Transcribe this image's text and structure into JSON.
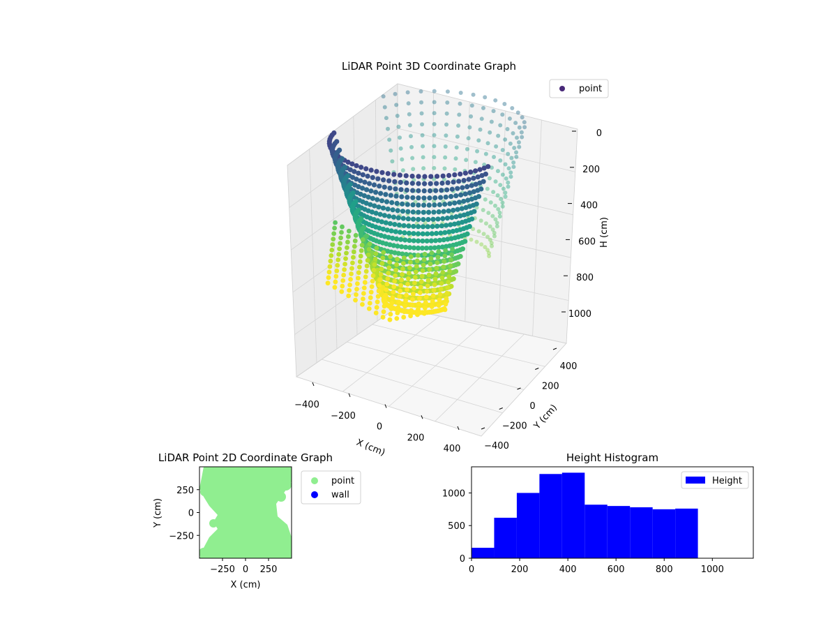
{
  "chart_data": [
    {
      "type": "scatter",
      "projection": "3d",
      "title": "LiDAR Point 3D Coordinate Graph",
      "xlabel": "X (cm)",
      "ylabel": "Y (cm)",
      "zlabel": "H (cm)",
      "xticks": [
        -400,
        -200,
        0,
        200,
        400
      ],
      "yticks": [
        -400,
        -200,
        0,
        200,
        400
      ],
      "zticks": [
        0,
        200,
        400,
        600,
        800,
        1000
      ],
      "xlim": [
        -500,
        500
      ],
      "ylim": [
        -500,
        500
      ],
      "zlim": [
        0,
        1150
      ],
      "zaxis_inverted": true,
      "colormap": "viridis",
      "grid": true,
      "legend": {
        "placement": "top-right",
        "entries": [
          {
            "name": "point",
            "color": "#482878"
          }
        ]
      },
      "series": [
        {
          "name": "point",
          "description_of_shape": "bowl-shaped surface of concentric rings; deepest near X≈0, Y≈-300 at H≈1000"
        }
      ]
    },
    {
      "type": "scatter",
      "title": "LiDAR Point 2D Coordinate Graph",
      "xlabel": "X (cm)",
      "ylabel": "Y (cm)",
      "xticks": [
        -250,
        0,
        250
      ],
      "yticks": [
        -250,
        0,
        250
      ],
      "xlim": [
        -500,
        500
      ],
      "ylim": [
        -500,
        500
      ],
      "legend": {
        "placement": "outside-right",
        "entries": [
          {
            "name": "point",
            "color": "#90ee90"
          },
          {
            "name": "wall",
            "color": "#0000ff"
          }
        ]
      },
      "series": [
        {
          "name": "point",
          "color": "#90ee90"
        },
        {
          "name": "wall",
          "color": "#0000ff",
          "values": []
        }
      ]
    },
    {
      "type": "bar",
      "subtype": "histogram",
      "title": "Height Histogram",
      "xlabel": "",
      "ylabel": "",
      "xticks": [
        0,
        200,
        400,
        600,
        800,
        1000
      ],
      "yticks": [
        0,
        500,
        1000
      ],
      "xlim": [
        0,
        1170
      ],
      "ylim": [
        0,
        1400
      ],
      "bin_edges": [
        0,
        94,
        188,
        282,
        376,
        470,
        564,
        658,
        752,
        846,
        940
      ],
      "values": [
        160,
        620,
        1000,
        1290,
        1310,
        820,
        800,
        780,
        750,
        760
      ],
      "color": "#0000ff",
      "legend": {
        "placement": "top-right",
        "entries": [
          {
            "name": "Height",
            "color": "#0000ff"
          }
        ]
      }
    }
  ]
}
